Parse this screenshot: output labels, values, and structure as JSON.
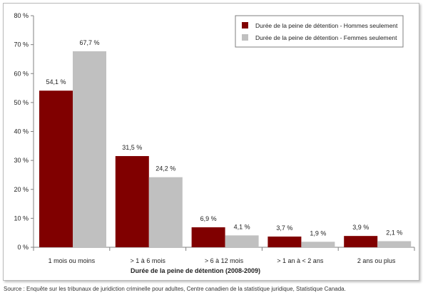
{
  "chart_data": {
    "type": "bar",
    "categories": [
      "1 mois ou moins",
      "> 1 à 6 mois",
      "> 6 à 12 mois",
      "> 1 an à < 2 ans",
      "2 ans ou plus"
    ],
    "series": [
      {
        "name": "Durée de la peine de détention - Hommes seulement",
        "color": "#800000",
        "values": [
          54.1,
          31.5,
          6.9,
          3.7,
          3.9
        ],
        "labels": [
          "54,1 %",
          "31,5 %",
          "6,9 %",
          "3,7 %",
          "3,9 %"
        ]
      },
      {
        "name": "Durée de la peine de détention - Femmes seulement",
        "color": "#c0c0c0",
        "values": [
          67.7,
          24.2,
          4.1,
          1.9,
          2.1
        ],
        "labels": [
          "67,7 %",
          "24,2 %",
          "4,1 %",
          "1,9 %",
          "2,1 %"
        ]
      }
    ],
    "xlabel": "Durée de la peine de détention  (2008-2009)",
    "ylabel": "",
    "ylim": [
      0,
      80
    ],
    "yticks": [
      0,
      10,
      20,
      30,
      40,
      50,
      60,
      70,
      80
    ],
    "ytick_labels": [
      "0 %",
      "10 %",
      "20 %",
      "30 %",
      "40 %",
      "50 %",
      "60 %",
      "70 %",
      "80 %"
    ],
    "grid": false,
    "legend": "top-right"
  },
  "source": "Source : Enquête sur les tribunaux de juridiction criminelle pour adultes, Centre canadien de la statistique juridique, Statistique Canada."
}
